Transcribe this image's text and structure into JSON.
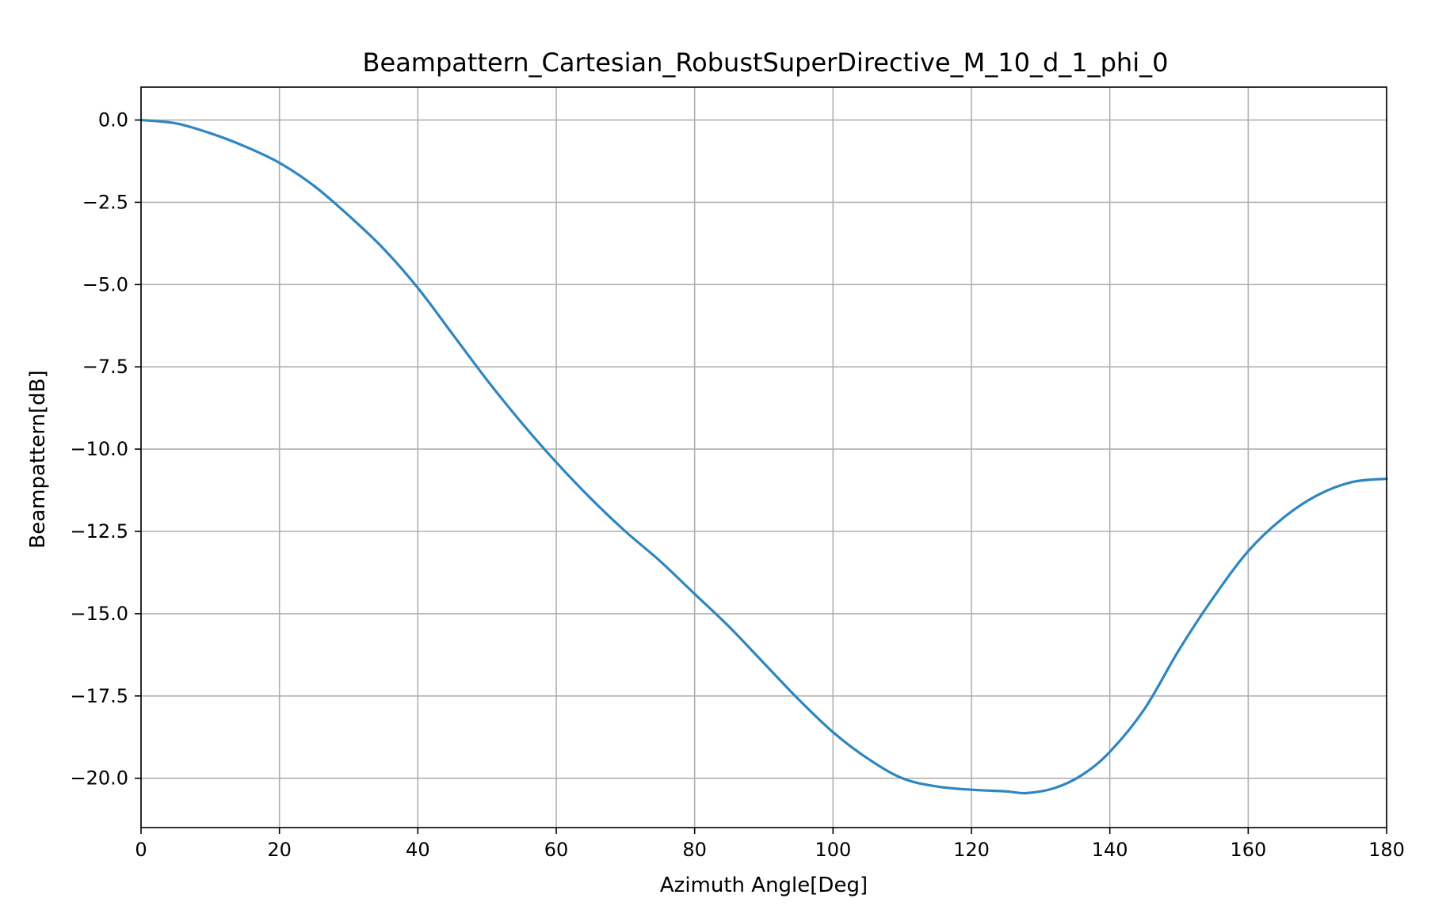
{
  "chart_data": {
    "type": "line",
    "title": "Beampattern_Cartesian_RobustSuperDirective_M_10_d_1_phi_0",
    "xlabel": "Azimuth Angle[Deg]",
    "ylabel": "Beampattern[dB]",
    "xlim": [
      0,
      180
    ],
    "ylim": [
      -21.5,
      1.0
    ],
    "xticks": [
      0,
      20,
      40,
      60,
      80,
      100,
      120,
      140,
      160,
      180
    ],
    "xtick_labels": [
      "0",
      "20",
      "40",
      "60",
      "80",
      "100",
      "120",
      "140",
      "160",
      "180"
    ],
    "yticks": [
      0.0,
      -2.5,
      -5.0,
      -7.5,
      -10.0,
      -12.5,
      -15.0,
      -17.5,
      -20.0
    ],
    "ytick_labels": [
      "0.0",
      "−2.5",
      "−5.0",
      "−7.5",
      "−10.0",
      "−12.5",
      "−15.0",
      "−17.5",
      "−20.0"
    ],
    "grid": true,
    "series": [
      {
        "color": "#2e86c1",
        "x": [
          0,
          5,
          10,
          15,
          20,
          25,
          30,
          35,
          40,
          45,
          50,
          55,
          60,
          65,
          70,
          75,
          80,
          85,
          90,
          95,
          100,
          105,
          110,
          115,
          120,
          125,
          128,
          132,
          136,
          140,
          145,
          150,
          155,
          160,
          165,
          170,
          175,
          180
        ],
        "y": [
          0.0,
          -0.1,
          -0.4,
          -0.8,
          -1.3,
          -2.0,
          -2.9,
          -3.9,
          -5.1,
          -6.5,
          -7.9,
          -9.2,
          -10.4,
          -11.5,
          -12.5,
          -13.4,
          -14.4,
          -15.4,
          -16.5,
          -17.6,
          -18.6,
          -19.4,
          -20.0,
          -20.25,
          -20.35,
          -20.4,
          -20.45,
          -20.3,
          -19.9,
          -19.2,
          -17.9,
          -16.1,
          -14.5,
          -13.1,
          -12.1,
          -11.4,
          -11.0,
          -10.9
        ]
      }
    ]
  }
}
